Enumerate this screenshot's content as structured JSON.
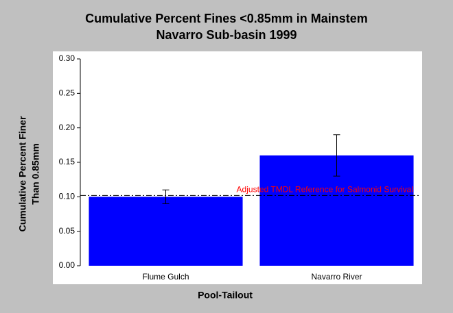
{
  "chart_data": {
    "type": "bar",
    "title": "Cumulative Percent Fines <0.85mm in Mainstem",
    "subtitle": "Navarro Sub-basin 1999",
    "x_label": "Pool-Tailout",
    "y_label": [
      "Cumulative Percent Finer",
      "Than 0.85mm"
    ],
    "categories": [
      "Flume Gulch",
      "Navarro River"
    ],
    "values": [
      0.1,
      0.16
    ],
    "errors": [
      0.01,
      0.03
    ],
    "color": "#0000ff",
    "ylim": [
      0,
      0.3
    ],
    "yticks": [
      {
        "value": 0,
        "label": "0.00"
      },
      {
        "value": 0.05,
        "label": "0.05"
      },
      {
        "value": 0.1,
        "label": "0.10"
      },
      {
        "value": 0.15,
        "label": "0.15"
      },
      {
        "value": 0.2,
        "label": "0.20"
      },
      {
        "value": 0.25,
        "label": "0.25"
      },
      {
        "value": 0.3,
        "label": "0.30"
      }
    ],
    "reference": {
      "value": 0.102,
      "label": "Adjusted TMDL Reference for Salmonid Survival",
      "color": "#ff0000"
    }
  }
}
